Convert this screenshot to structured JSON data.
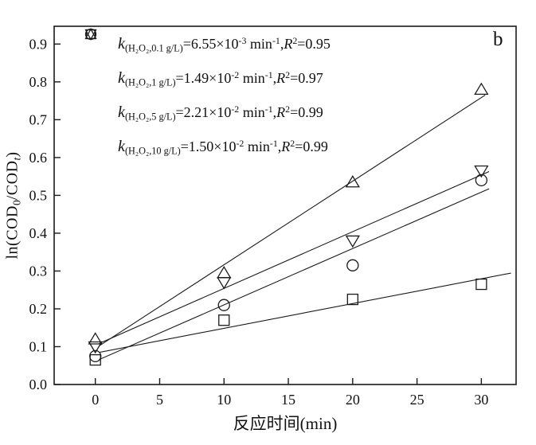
{
  "chart_data": {
    "type": "scatter",
    "panel_label": "b",
    "xlabel": "反应时间(min)",
    "ylabel_parts": {
      "pre": "ln(COD",
      "sub_0": "0",
      "mid": "/COD",
      "sub_t": "t",
      "post": ")"
    },
    "xlim": [
      -3.2,
      32.7
    ],
    "ylim": [
      0,
      0.947
    ],
    "x_ticks": {
      "values": [
        0,
        5,
        10,
        15,
        20,
        25,
        30
      ],
      "labels": [
        "0",
        "5",
        "10",
        "15",
        "20",
        "25",
        "30"
      ]
    },
    "y_ticks": {
      "values": [
        0.0,
        0.1,
        0.2,
        0.3,
        0.4,
        0.5,
        0.6,
        0.7,
        0.8,
        0.9
      ],
      "labels": [
        "0.0",
        "0.1",
        "0.2",
        "0.3",
        "0.4",
        "0.5",
        "0.6",
        "0.7",
        "0.8",
        "0.9"
      ]
    },
    "x": [
      0,
      10,
      20,
      30
    ],
    "series": [
      {
        "name": "H2O2 0.1 g/L",
        "marker": "square",
        "values": [
          0.065,
          0.17,
          0.225,
          0.265
        ],
        "fit": {
          "slope": 0.00655,
          "intercept": 0.083,
          "x_start": 0.3,
          "x_end": 32.3
        }
      },
      {
        "name": "H2O2 1 g/L",
        "marker": "circle",
        "values": [
          0.075,
          0.21,
          0.315,
          0.54
        ],
        "fit": {
          "slope": 0.0149,
          "intercept": 0.0615,
          "x_start": 0.3,
          "x_end": 30.6
        }
      },
      {
        "name": "H2O2 5 g/L",
        "marker": "triangle-up",
        "values": [
          0.12,
          0.295,
          0.535,
          0.78
        ],
        "fit": {
          "slope": 0.0221,
          "intercept": 0.0955,
          "x_start": 0.3,
          "x_end": 30.3
        }
      },
      {
        "name": "H2O2 10 g/L",
        "marker": "triangle-down",
        "values": [
          0.1,
          0.27,
          0.38,
          0.565
        ],
        "fit": {
          "slope": 0.015,
          "intercept": 0.104,
          "x_start": 0.3,
          "x_end": 30.6
        }
      }
    ],
    "legend_items": [
      {
        "marker": "square",
        "k": "k",
        "k_sub": "(H₂O₂,0.1 g/L)",
        "eq_value": "=6.55×10",
        "value_exp": "-3",
        "unit": " min",
        "unit_exp": "-1",
        "comma": ",",
        "r": "R",
        "r_exp": "2",
        "r_eq_value": "=0.95"
      },
      {
        "marker": "circle",
        "k": "k",
        "k_sub": "(H₂O₂,1 g/L)",
        "eq_value": "=1.49×10",
        "value_exp": "-2",
        "unit": " min",
        "unit_exp": "-1",
        "comma": ",",
        "r": "R",
        "r_exp": "2",
        "r_eq_value": "=0.97"
      },
      {
        "marker": "triangle-up",
        "k": "k",
        "k_sub": "(H₂O₂,5 g/L)",
        "eq_value": "=2.21×10",
        "value_exp": "-2",
        "unit": " min",
        "unit_exp": "-1",
        "comma": ",",
        "r": "R",
        "r_exp": "2",
        "r_eq_value": "=0.99"
      },
      {
        "marker": "triangle-down",
        "k": "k",
        "k_sub": "(H₂O₂,10 g/L)",
        "eq_value": "=1.50×10",
        "value_exp": "-2",
        "unit": " min",
        "unit_exp": "-1",
        "comma": ",",
        "r": "R",
        "r_eq": "=",
        "r_exp": "2",
        "r_eq_value": "=0.99"
      }
    ],
    "colors": {
      "stroke": "#1a1a1a",
      "background": "#ffffff"
    }
  }
}
